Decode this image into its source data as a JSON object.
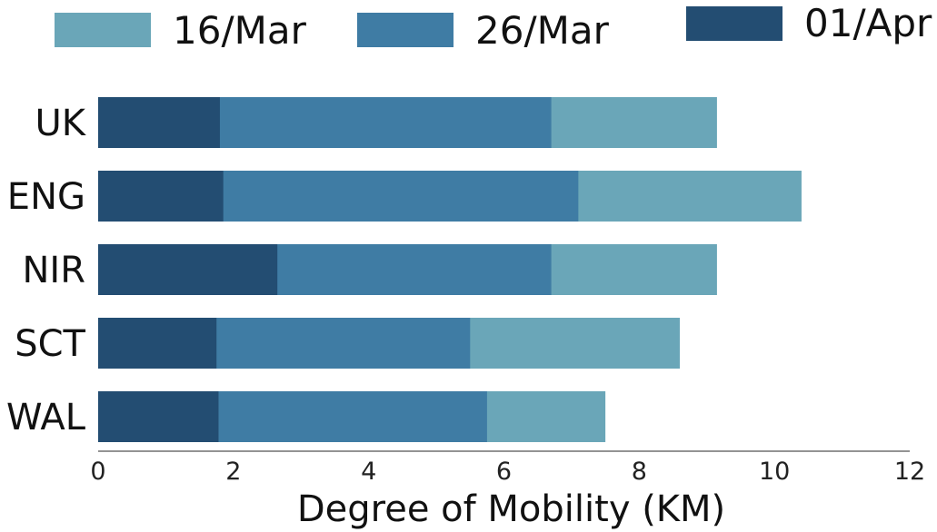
{
  "chart_data": {
    "type": "bar",
    "orientation": "horizontal",
    "stacking": "overlay",
    "categories": [
      "UK",
      "ENG",
      "NIR",
      "SCT",
      "WAL"
    ],
    "series": [
      {
        "name": "16/Mar",
        "color": "#6aa6b8",
        "values": [
          9.15,
          10.4,
          9.15,
          8.6,
          7.5
        ]
      },
      {
        "name": "26/Mar",
        "color": "#3f7ca4",
        "values": [
          6.7,
          7.1,
          6.7,
          5.5,
          5.75
        ]
      },
      {
        "name": "01/Apr",
        "color": "#234d72",
        "values": [
          1.8,
          1.85,
          2.65,
          1.75,
          1.78
        ]
      }
    ],
    "xlabel": "Degree of Mobility (KM)",
    "ylabel": "",
    "xlim": [
      0,
      12
    ],
    "xticks": [
      "0",
      "2",
      "4",
      "6",
      "8",
      "10",
      "12"
    ],
    "grid": false,
    "legend_position": "top"
  }
}
